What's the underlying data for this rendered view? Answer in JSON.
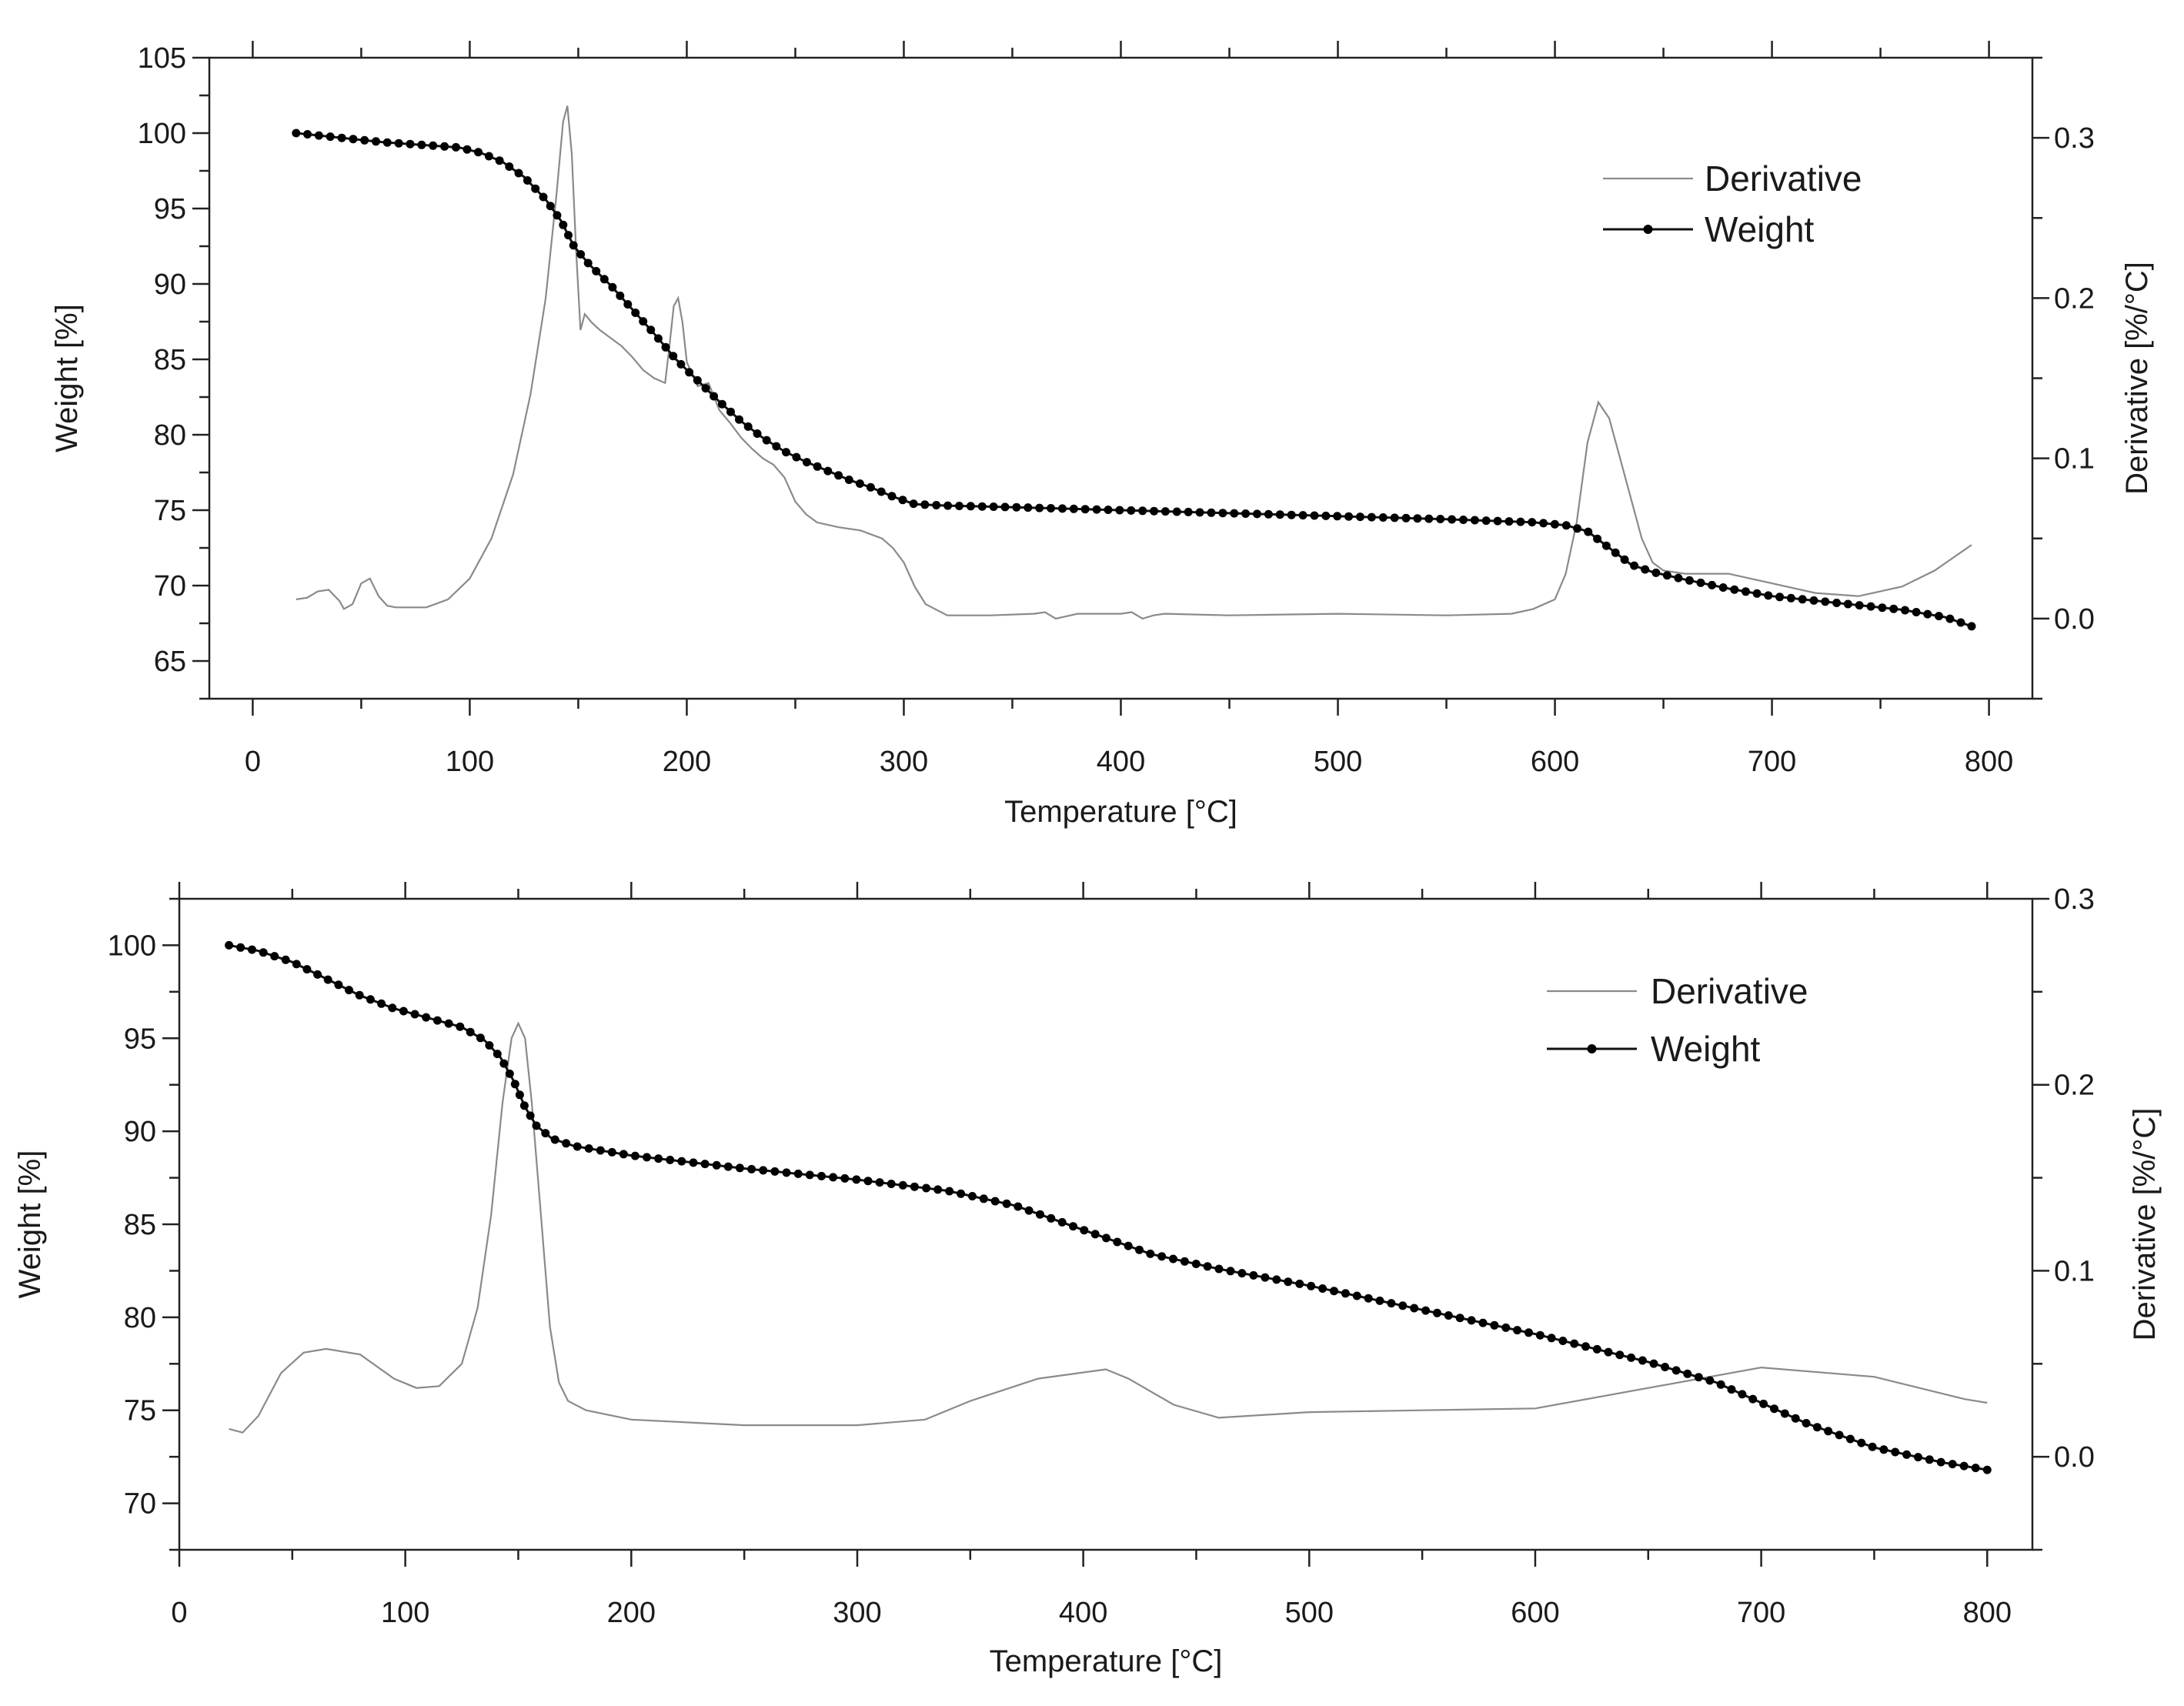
{
  "chart_data": [
    {
      "type": "line",
      "xlabel": "Temperature [°C]",
      "ylabel": "Weight [%]",
      "y2label": "Derivative [%/°C]",
      "xlim": [
        -20,
        820
      ],
      "ylim": [
        62.5,
        105
      ],
      "y2lim": [
        -0.05,
        0.35
      ],
      "xticks": [
        0,
        100,
        200,
        300,
        400,
        500,
        600,
        700,
        800
      ],
      "yticks": [
        65,
        70,
        75,
        80,
        85,
        90,
        95,
        100,
        105
      ],
      "y2ticks": [
        0.0,
        0.1,
        0.2,
        0.3
      ],
      "y2tick_labels": [
        "0.0",
        "0.1",
        "0.2",
        "0.3"
      ],
      "legend_position": "top-right",
      "series": [
        {
          "name": "Derivative",
          "axis": "right",
          "marker": false,
          "x": [
            20,
            25,
            30,
            35,
            40,
            42,
            46,
            50,
            54,
            58,
            62,
            66,
            70,
            80,
            90,
            100,
            110,
            120,
            128,
            135,
            140,
            143,
            145,
            147,
            149,
            151,
            153,
            156,
            160,
            165,
            170,
            175,
            180,
            185,
            190,
            192,
            194,
            196,
            198,
            200,
            205,
            210,
            215,
            220,
            225,
            230,
            235,
            240,
            245,
            250,
            255,
            260,
            270,
            280,
            290,
            295,
            300,
            305,
            310,
            320,
            340,
            360,
            365,
            370,
            380,
            400,
            405,
            410,
            415,
            420,
            450,
            500,
            550,
            580,
            590,
            600,
            605,
            610,
            615,
            620,
            625,
            630,
            635,
            640,
            645,
            650,
            660,
            680,
            700,
            720,
            740,
            760,
            775,
            792
          ],
          "y": [
            0.012,
            0.013,
            0.017,
            0.018,
            0.011,
            0.006,
            0.009,
            0.022,
            0.025,
            0.014,
            0.008,
            0.007,
            0.007,
            0.007,
            0.012,
            0.025,
            0.05,
            0.09,
            0.14,
            0.2,
            0.265,
            0.31,
            0.32,
            0.29,
            0.23,
            0.18,
            0.19,
            0.185,
            0.18,
            0.175,
            0.17,
            0.163,
            0.155,
            0.15,
            0.147,
            0.17,
            0.195,
            0.2,
            0.185,
            0.16,
            0.145,
            0.147,
            0.13,
            0.122,
            0.113,
            0.106,
            0.1,
            0.096,
            0.088,
            0.073,
            0.065,
            0.06,
            0.057,
            0.055,
            0.05,
            0.044,
            0.035,
            0.02,
            0.009,
            0.002,
            0.002,
            0.003,
            0.004,
            0.0,
            0.003,
            0.003,
            0.004,
            0.0,
            0.002,
            0.003,
            0.002,
            0.003,
            0.002,
            0.003,
            0.006,
            0.012,
            0.028,
            0.06,
            0.11,
            0.135,
            0.125,
            0.1,
            0.075,
            0.05,
            0.035,
            0.03,
            0.028,
            0.028,
            0.022,
            0.016,
            0.014,
            0.02,
            0.03,
            0.046
          ]
        },
        {
          "name": "Weight",
          "axis": "left",
          "marker": true,
          "x": [
            20,
            40,
            60,
            80,
            95,
            105,
            115,
            125,
            135,
            142,
            148,
            155,
            165,
            175,
            185,
            195,
            205,
            215,
            225,
            235,
            245,
            255,
            265,
            275,
            285,
            295,
            305,
            320,
            350,
            400,
            450,
            500,
            550,
            590,
            605,
            615,
            625,
            635,
            645,
            660,
            680,
            700,
            720,
            740,
            760,
            780,
            792
          ],
          "y": [
            100,
            99.7,
            99.4,
            99.2,
            99.05,
            98.7,
            98.1,
            97.1,
            95.6,
            94.2,
            92.5,
            91.3,
            89.9,
            88.3,
            86.7,
            85.0,
            83.6,
            82.2,
            80.9,
            79.8,
            78.9,
            78.2,
            77.6,
            77.0,
            76.5,
            75.9,
            75.4,
            75.3,
            75.2,
            75.0,
            74.8,
            74.6,
            74.4,
            74.2,
            74.0,
            73.6,
            72.5,
            71.4,
            70.9,
            70.4,
            69.8,
            69.3,
            69.0,
            68.7,
            68.4,
            67.9,
            67.3
          ]
        }
      ]
    },
    {
      "type": "line",
      "xlabel": "Temperature [°C]",
      "ylabel": "Weight [%]",
      "y2label": "Derivative [%/°C]",
      "xlim": [
        0,
        820
      ],
      "ylim": [
        67.5,
        102.5
      ],
      "y2lim": [
        -0.05,
        0.3
      ],
      "xticks": [
        0,
        100,
        200,
        300,
        400,
        500,
        600,
        700,
        800
      ],
      "yticks": [
        70,
        75,
        80,
        85,
        90,
        95,
        100
      ],
      "y2ticks": [
        0.0,
        0.1,
        0.2,
        0.3
      ],
      "y2tick_labels": [
        "0.0",
        "0.1",
        "0.2",
        "0.3"
      ],
      "legend_position": "top-right",
      "series": [
        {
          "name": "Derivative",
          "axis": "right",
          "marker": false,
          "x": [
            22,
            28,
            35,
            45,
            55,
            65,
            80,
            95,
            105,
            115,
            125,
            132,
            138,
            143,
            147,
            150,
            153,
            156,
            160,
            164,
            168,
            172,
            180,
            200,
            250,
            300,
            330,
            350,
            380,
            410,
            420,
            440,
            460,
            500,
            550,
            600,
            650,
            700,
            750,
            790,
            800
          ],
          "y": [
            0.015,
            0.013,
            0.022,
            0.045,
            0.056,
            0.058,
            0.055,
            0.042,
            0.037,
            0.038,
            0.05,
            0.08,
            0.13,
            0.19,
            0.225,
            0.233,
            0.225,
            0.19,
            0.13,
            0.07,
            0.04,
            0.03,
            0.025,
            0.02,
            0.017,
            0.017,
            0.02,
            0.03,
            0.042,
            0.047,
            0.042,
            0.028,
            0.021,
            0.024,
            0.025,
            0.026,
            0.037,
            0.048,
            0.043,
            0.031,
            0.029
          ]
        },
        {
          "name": "Weight",
          "axis": "left",
          "marker": true,
          "x": [
            22,
            35,
            50,
            65,
            80,
            95,
            110,
            125,
            135,
            142,
            148,
            153,
            158,
            165,
            175,
            200,
            250,
            300,
            340,
            370,
            400,
            430,
            460,
            500,
            550,
            600,
            650,
            680,
            700,
            720,
            750,
            780,
            800
          ],
          "y": [
            100,
            99.7,
            99.1,
            98.2,
            97.3,
            96.6,
            96.1,
            95.6,
            94.9,
            94.0,
            92.7,
            91.3,
            90.3,
            89.6,
            89.2,
            88.7,
            88.0,
            87.4,
            86.8,
            86.0,
            84.7,
            83.4,
            82.6,
            81.7,
            80.4,
            79.1,
            77.6,
            76.5,
            75.4,
            74.3,
            73.0,
            72.2,
            71.8
          ]
        }
      ]
    }
  ]
}
